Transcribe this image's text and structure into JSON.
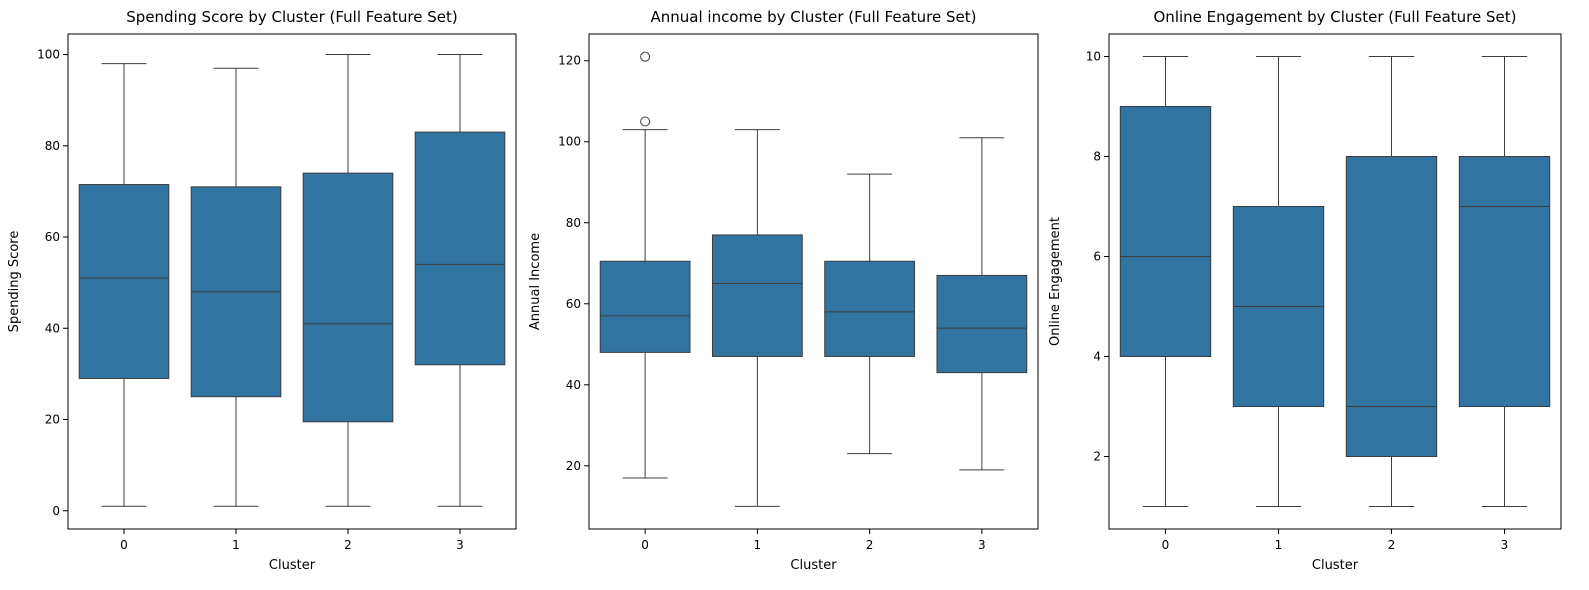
{
  "chart_data": [
    {
      "type": "box",
      "title": "Spending Score by Cluster (Full Feature Set)",
      "xlabel": "Cluster",
      "ylabel": "Spending Score",
      "categories": [
        "0",
        "1",
        "2",
        "3"
      ],
      "ylim": [
        -4,
        104.5
      ],
      "yticks": [
        0,
        20,
        40,
        60,
        80,
        100
      ],
      "box_color": "#3274a1",
      "boxes": [
        {
          "category": "0",
          "whisker_low": 1,
          "q1": 29,
          "median": 51,
          "q3": 71.5,
          "whisker_high": 98,
          "outliers": []
        },
        {
          "category": "1",
          "whisker_low": 1,
          "q1": 25,
          "median": 48,
          "q3": 71,
          "whisker_high": 97,
          "outliers": []
        },
        {
          "category": "2",
          "whisker_low": 1,
          "q1": 19.5,
          "median": 41,
          "q3": 74,
          "whisker_high": 100,
          "outliers": []
        },
        {
          "category": "3",
          "whisker_low": 1,
          "q1": 32,
          "median": 54,
          "q3": 83,
          "whisker_high": 100,
          "outliers": []
        }
      ]
    },
    {
      "type": "box",
      "title": "Annual income by Cluster (Full Feature Set)",
      "xlabel": "Cluster",
      "ylabel": "Annual Income",
      "categories": [
        "0",
        "1",
        "2",
        "3"
      ],
      "ylim": [
        4.4,
        126.6
      ],
      "yticks": [
        20,
        40,
        60,
        80,
        100,
        120
      ],
      "box_color": "#3274a1",
      "boxes": [
        {
          "category": "0",
          "whisker_low": 17,
          "q1": 48,
          "median": 57,
          "q3": 70.5,
          "whisker_high": 103,
          "outliers": [
            105,
            121
          ]
        },
        {
          "category": "1",
          "whisker_low": 10,
          "q1": 47,
          "median": 65,
          "q3": 77,
          "whisker_high": 103,
          "outliers": []
        },
        {
          "category": "2",
          "whisker_low": 23,
          "q1": 47,
          "median": 58,
          "q3": 70.5,
          "whisker_high": 92,
          "outliers": []
        },
        {
          "category": "3",
          "whisker_low": 19,
          "q1": 43,
          "median": 54,
          "q3": 67,
          "whisker_high": 101,
          "outliers": []
        }
      ]
    },
    {
      "type": "box",
      "title": "Online Engagement by Cluster (Full Feature Set)",
      "xlabel": "Cluster",
      "ylabel": "Online Engagement",
      "categories": [
        "0",
        "1",
        "2",
        "3"
      ],
      "ylim": [
        0.55,
        10.45
      ],
      "yticks": [
        2,
        4,
        6,
        8,
        10
      ],
      "box_color": "#3274a1",
      "boxes": [
        {
          "category": "0",
          "whisker_low": 1,
          "q1": 4,
          "median": 6,
          "q3": 9,
          "whisker_high": 10,
          "outliers": []
        },
        {
          "category": "1",
          "whisker_low": 1,
          "q1": 3,
          "median": 5,
          "q3": 7,
          "whisker_high": 10,
          "outliers": []
        },
        {
          "category": "2",
          "whisker_low": 1,
          "q1": 2,
          "median": 3,
          "q3": 8,
          "whisker_high": 10,
          "outliers": []
        },
        {
          "category": "3",
          "whisker_low": 1,
          "q1": 3,
          "median": 7,
          "q3": 8,
          "whisker_high": 10,
          "outliers": []
        }
      ]
    }
  ]
}
